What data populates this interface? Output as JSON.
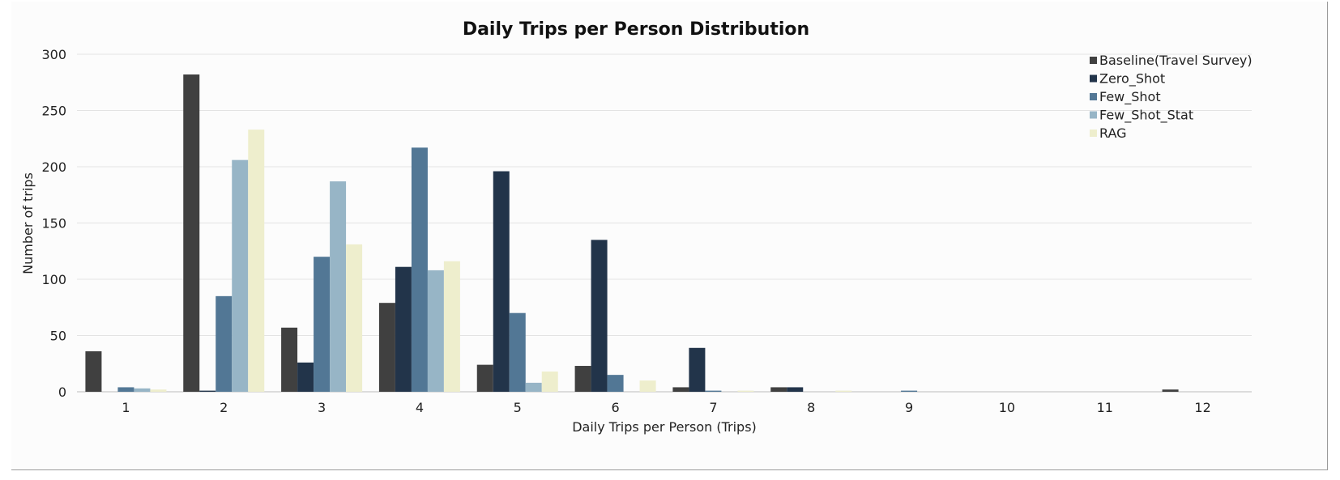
{
  "chart_data": {
    "type": "bar",
    "title": "Daily Trips per Person Distribution",
    "xlabel": "Daily Trips per Person (Trips)",
    "ylabel": "Number of trips",
    "categories": [
      "1",
      "2",
      "3",
      "4",
      "5",
      "6",
      "7",
      "8",
      "9",
      "10",
      "11",
      "12"
    ],
    "ylim": [
      0,
      300
    ],
    "yticks": [
      0,
      50,
      100,
      150,
      200,
      250,
      300
    ],
    "grid": "horizontal",
    "legend_position": "top-right",
    "series": [
      {
        "name": "Baseline(Travel Survey)",
        "color": "#404040",
        "values": [
          36,
          282,
          57,
          79,
          24,
          23,
          4,
          4,
          0,
          0,
          0,
          2
        ]
      },
      {
        "name": "Zero_Shot",
        "color": "#22344a",
        "values": [
          0,
          1,
          26,
          111,
          196,
          135,
          39,
          4,
          0,
          0,
          0,
          0
        ]
      },
      {
        "name": "Few_Shot",
        "color": "#527795",
        "values": [
          4,
          85,
          120,
          217,
          70,
          15,
          1,
          0,
          1,
          0,
          0,
          0
        ]
      },
      {
        "name": "Few_Shot_Stat",
        "color": "#97b5c6",
        "values": [
          3,
          206,
          187,
          108,
          8,
          0,
          0,
          0,
          0,
          0,
          0,
          0
        ]
      },
      {
        "name": "RAG",
        "color": "#eeeecd",
        "values": [
          2,
          233,
          131,
          116,
          18,
          10,
          1,
          1,
          0,
          0,
          0,
          0
        ]
      }
    ]
  }
}
